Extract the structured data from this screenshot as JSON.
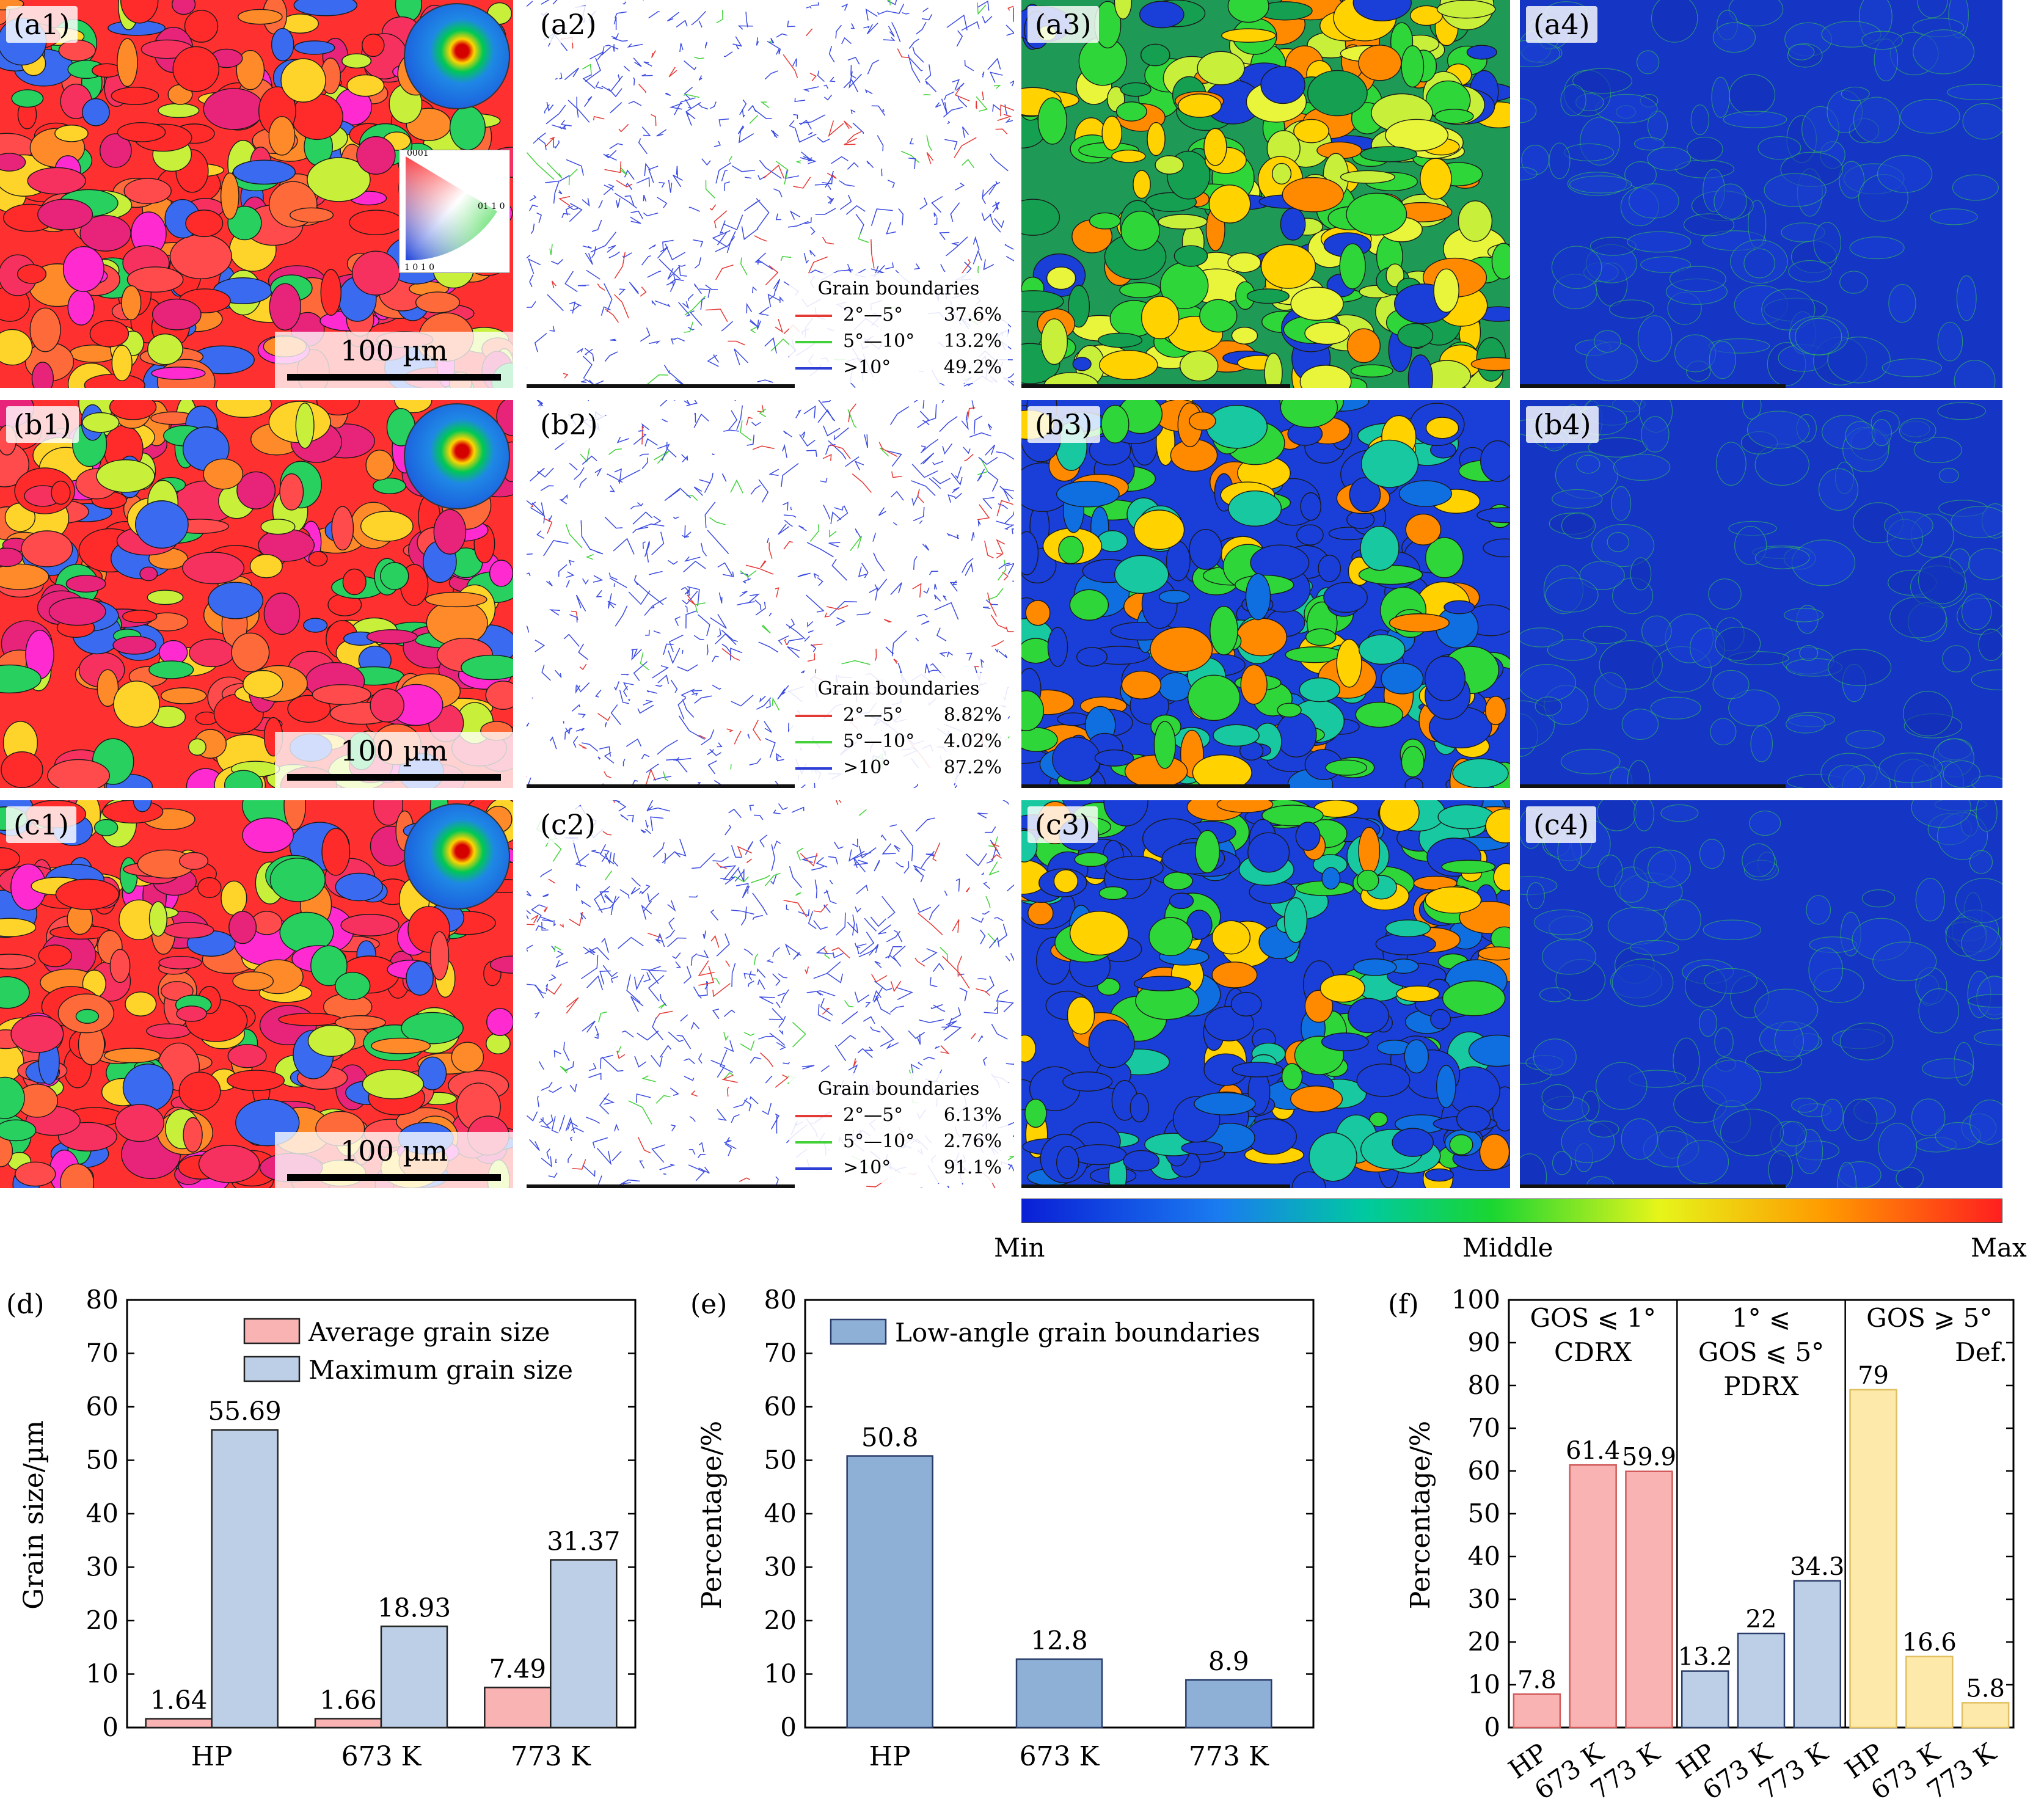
{
  "panels": {
    "a1": {
      "label": "(a1)",
      "scale": "100 µm"
    },
    "a2": {
      "label": "(a2)",
      "legend": {
        "title": "Grain boundaries",
        "rows": [
          {
            "range": "2°—5°",
            "pct": "37.6%",
            "color": "#e53935"
          },
          {
            "range": "5°—10°",
            "pct": "13.2%",
            "color": "#43d13a"
          },
          {
            "range": ">10°",
            "pct": "49.2%",
            "color": "#2f3fd6"
          }
        ]
      }
    },
    "a3": {
      "label": "(a3)"
    },
    "a4": {
      "label": "(a4)"
    },
    "b1": {
      "label": "(b1)",
      "scale": "100 µm"
    },
    "b2": {
      "label": "(b2)",
      "legend": {
        "title": "Grain boundaries",
        "rows": [
          {
            "range": "2°—5°",
            "pct": "8.82%",
            "color": "#e53935"
          },
          {
            "range": "5°—10°",
            "pct": "4.02%",
            "color": "#43d13a"
          },
          {
            "range": ">10°",
            "pct": "87.2%",
            "color": "#2f3fd6"
          }
        ]
      }
    },
    "b3": {
      "label": "(b3)"
    },
    "b4": {
      "label": "(b4)"
    },
    "c1": {
      "label": "(c1)",
      "scale": "100 µm"
    },
    "c2": {
      "label": "(c2)",
      "legend": {
        "title": "Grain boundaries",
        "rows": [
          {
            "range": "2°—5°",
            "pct": "6.13%",
            "color": "#e53935"
          },
          {
            "range": "5°—10°",
            "pct": "2.76%",
            "color": "#43d13a"
          },
          {
            "range": ">10°",
            "pct": "91.1%",
            "color": "#2f3fd6"
          }
        ]
      }
    },
    "c3": {
      "label": "(c3)"
    },
    "c4": {
      "label": "(c4)"
    }
  },
  "ipf_labels": {
    "top": "0001",
    "right": "01 1 0",
    "bottom": "1 0 1 0"
  },
  "colorbar": {
    "min": "Min",
    "mid": "Middle",
    "max": "Max"
  },
  "colors": {
    "avg_bar": "#f9b3b3",
    "max_bar": "#bccfe6",
    "lagb_bar": "#8eb0d6",
    "gos_red": "#f9b3b3",
    "gos_blue": "#bccfe6",
    "gos_yellow": "#fde9a9"
  },
  "chart_data": [
    {
      "panel_label": "(d)",
      "type": "bar",
      "ylabel": "Grain size/µm",
      "ylim": [
        0,
        80
      ],
      "yticks": [
        0,
        10,
        20,
        30,
        40,
        50,
        60,
        70,
        80
      ],
      "categories": [
        "HP",
        "673 K",
        "773 K"
      ],
      "series": [
        {
          "name": "Average grain size",
          "values": [
            1.64,
            1.66,
            7.49
          ],
          "value_labels": [
            "1.64",
            "1.66",
            "7.49"
          ]
        },
        {
          "name": "Maximum grain size",
          "values": [
            55.69,
            18.93,
            31.37
          ],
          "value_labels": [
            "55.69",
            "18.93",
            "31.37"
          ]
        }
      ],
      "legend": "top-right"
    },
    {
      "panel_label": "(e)",
      "type": "bar",
      "ylabel": "Percentage/%",
      "ylim": [
        0,
        80
      ],
      "yticks": [
        0,
        10,
        20,
        30,
        40,
        50,
        60,
        70,
        80
      ],
      "categories": [
        "HP",
        "673 K",
        "773 K"
      ],
      "series": [
        {
          "name": "Low-angle grain boundaries",
          "values": [
            50.8,
            12.8,
            8.9
          ],
          "value_labels": [
            "50.8",
            "12.8",
            "8.9"
          ]
        }
      ],
      "legend": "top-left"
    },
    {
      "panel_label": "(f)",
      "type": "bar",
      "ylabel": "Percentage/%",
      "ylim": [
        0,
        100
      ],
      "yticks": [
        0,
        10,
        20,
        30,
        40,
        50,
        60,
        70,
        80,
        90,
        100
      ],
      "groups": [
        {
          "header": [
            "GOS ⩽ 1°",
            "CDRX"
          ],
          "categories": [
            "HP",
            "673 K",
            "773 K"
          ],
          "values": [
            7.8,
            61.4,
            59.9
          ],
          "value_labels": [
            "7.8",
            "61.4",
            "59.9"
          ]
        },
        {
          "header": [
            "1° ⩽",
            "GOS ⩽ 5°",
            "PDRX"
          ],
          "categories": [
            "HP",
            "673 K",
            "773 K"
          ],
          "values": [
            13.2,
            22,
            34.3
          ],
          "value_labels": [
            "13.2",
            "22",
            "34.3"
          ]
        },
        {
          "header": [
            "GOS ⩾ 5°",
            "Def."
          ],
          "categories": [
            "HP",
            "673 K",
            "773 K"
          ],
          "values": [
            79,
            16.6,
            5.8
          ],
          "value_labels": [
            "79",
            "16.6",
            "5.8"
          ]
        }
      ]
    }
  ]
}
